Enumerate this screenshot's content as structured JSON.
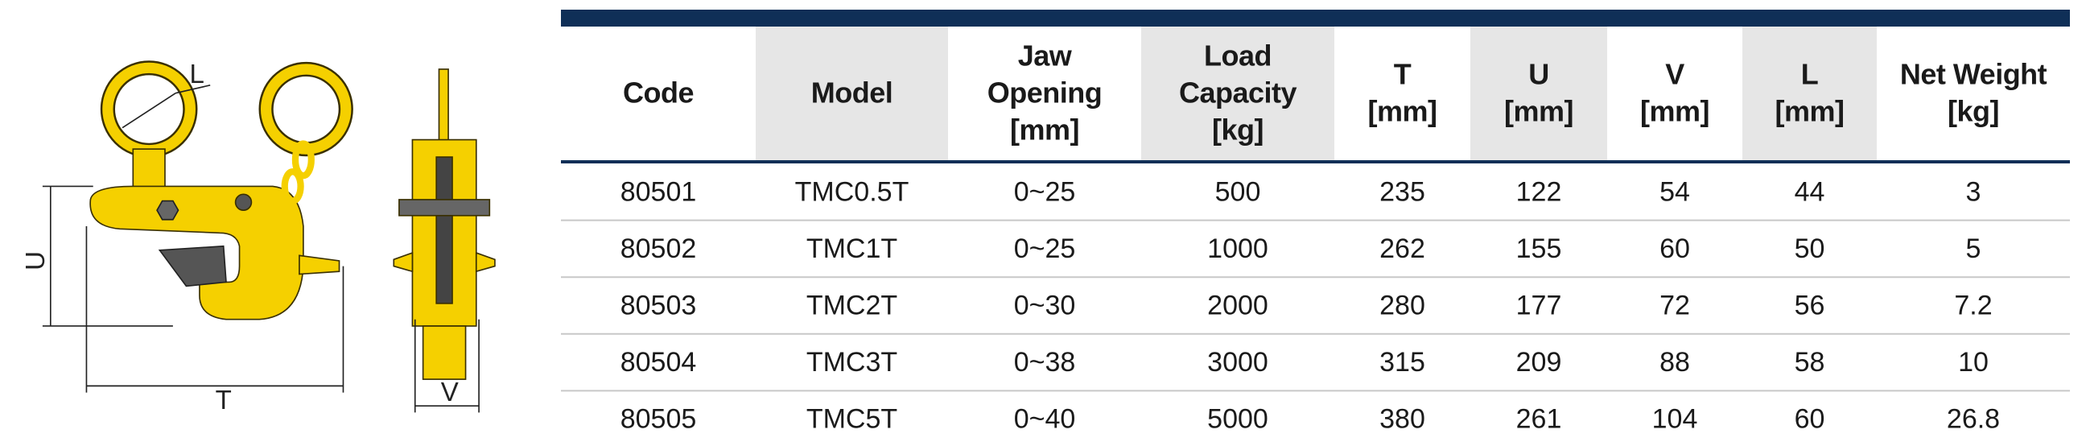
{
  "diagram": {
    "labels": {
      "L": "L",
      "U": "U",
      "T": "T",
      "V": "V"
    }
  },
  "table": {
    "headers": [
      [
        "Code"
      ],
      [
        "Model"
      ],
      [
        "Jaw",
        "Opening",
        "[mm]"
      ],
      [
        "Load",
        "Capacity",
        "[kg]"
      ],
      [
        "T",
        "[mm]"
      ],
      [
        "U",
        "[mm]"
      ],
      [
        "V",
        "[mm]"
      ],
      [
        "L",
        "[mm]"
      ],
      [
        "Net Weight",
        "[kg]"
      ]
    ],
    "rows": [
      [
        "80501",
        "TMC0.5T",
        "0~25",
        "500",
        "235",
        "122",
        "54",
        "44",
        "3"
      ],
      [
        "80502",
        "TMC1T",
        "0~25",
        "1000",
        "262",
        "155",
        "60",
        "50",
        "5"
      ],
      [
        "80503",
        "TMC2T",
        "0~30",
        "2000",
        "280",
        "177",
        "72",
        "56",
        "7.2"
      ],
      [
        "80504",
        "TMC3T",
        "0~38",
        "3000",
        "315",
        "209",
        "88",
        "58",
        "10"
      ],
      [
        "80505",
        "TMC5T",
        "0~40",
        "5000",
        "380",
        "261",
        "104",
        "60",
        "26.8"
      ]
    ]
  }
}
